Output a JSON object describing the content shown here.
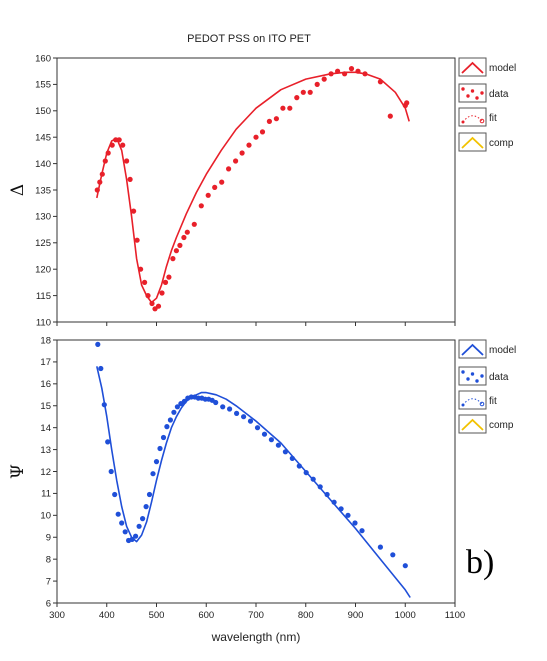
{
  "page_title": "PEDOT PSS on ITO PET",
  "panel_label": "b)",
  "xlabel": "wavelength (nm)",
  "legend_labels": [
    "model",
    "data",
    "fit",
    "comp"
  ],
  "colors": {
    "red": "#e8202a",
    "blue": "#1f4fd8",
    "yellow": "#f2c200",
    "frame": "#333333"
  },
  "chart_data": [
    {
      "type": "line",
      "ylabel": "Δ",
      "xlim": [
        300,
        1100
      ],
      "ylim": [
        110,
        160
      ],
      "xticks": [
        300,
        400,
        500,
        600,
        700,
        800,
        900,
        1000,
        1100
      ],
      "yticks": [
        110,
        115,
        120,
        125,
        130,
        135,
        140,
        145,
        150,
        155,
        160
      ],
      "legend_placement": "right",
      "series": [
        {
          "name": "model",
          "style": "line",
          "color": "#e8202a",
          "x": [
            380,
            390,
            400,
            410,
            420,
            430,
            440,
            450,
            460,
            470,
            480,
            490,
            500,
            510,
            520,
            530,
            540,
            560,
            580,
            600,
            630,
            660,
            700,
            750,
            800,
            850,
            880,
            900,
            920,
            950,
            980,
            1000,
            1008
          ],
          "y": [
            133.5,
            138,
            142,
            144.3,
            144.8,
            142.5,
            137,
            130,
            122,
            117,
            115,
            113.7,
            114.5,
            117,
            120.5,
            123.5,
            126,
            130.5,
            134.5,
            138,
            142.5,
            146.5,
            150.5,
            154,
            156,
            157,
            157.3,
            157.3,
            157,
            156,
            153.5,
            150.5,
            148
          ]
        },
        {
          "name": "data",
          "style": "points",
          "color": "#e8202a",
          "x": [
            381,
            386,
            391,
            397,
            403,
            411,
            418,
            425,
            432,
            440,
            447,
            454,
            461,
            468,
            476,
            483,
            491,
            497,
            504,
            511,
            518,
            525,
            533,
            540,
            547,
            555,
            562,
            576,
            590,
            604,
            617,
            631,
            645,
            659,
            672,
            686,
            700,
            713,
            727,
            741,
            754,
            768,
            782,
            795,
            809,
            823,
            837,
            851,
            864,
            878,
            892,
            905,
            919,
            950,
            970,
            1000,
            1003
          ],
          "y": [
            135,
            136.5,
            138,
            140.5,
            142,
            143.5,
            144.5,
            144.5,
            143.5,
            140.5,
            137,
            131,
            125.5,
            120,
            117.5,
            115,
            113.5,
            112.5,
            113,
            115.5,
            117.5,
            118.5,
            122,
            123.5,
            124.5,
            126,
            127,
            128.5,
            132,
            134,
            135.5,
            136.5,
            139,
            140.5,
            142,
            143.5,
            145,
            146,
            148,
            148.5,
            150.5,
            150.5,
            152.5,
            153.5,
            153.5,
            155,
            156,
            157,
            157.5,
            157,
            158,
            157.5,
            157,
            155.5,
            149,
            151,
            151.5
          ]
        },
        {
          "name": "fit",
          "style": "legend-only",
          "color": "#e8202a"
        },
        {
          "name": "comp",
          "style": "legend-only",
          "color": "#f2c200"
        }
      ]
    },
    {
      "type": "line",
      "ylabel": "Ψ",
      "xlim": [
        300,
        1100
      ],
      "ylim": [
        6,
        18
      ],
      "xticks": [
        300,
        400,
        500,
        600,
        700,
        800,
        900,
        1000,
        1100
      ],
      "yticks": [
        6,
        7,
        8,
        9,
        10,
        11,
        12,
        13,
        14,
        15,
        16,
        17,
        18
      ],
      "legend_placement": "right",
      "series": [
        {
          "name": "model",
          "style": "line",
          "color": "#1f4fd8",
          "x": [
            380,
            390,
            400,
            410,
            420,
            430,
            440,
            450,
            460,
            470,
            480,
            490,
            500,
            510,
            520,
            530,
            540,
            550,
            560,
            570,
            580,
            590,
            600,
            610,
            620,
            640,
            660,
            700,
            750,
            800,
            850,
            900,
            950,
            1000,
            1010
          ],
          "y": [
            16.8,
            15.8,
            14.5,
            13,
            11.6,
            10.4,
            9.5,
            9.0,
            8.8,
            9.1,
            9.7,
            10.6,
            11.6,
            12.5,
            13.3,
            14.0,
            14.5,
            14.9,
            15.2,
            15.4,
            15.5,
            15.6,
            15.6,
            15.55,
            15.5,
            15.3,
            15.0,
            14.3,
            13.3,
            12.0,
            10.7,
            9.4,
            8.0,
            6.6,
            6.25
          ]
        },
        {
          "name": "data",
          "style": "points",
          "color": "#1f4fd8",
          "x": [
            382,
            388,
            395,
            402,
            409,
            416,
            423,
            430,
            437,
            444,
            451,
            458,
            465,
            472,
            479,
            486,
            493,
            500,
            507,
            514,
            521,
            528,
            535,
            542,
            549,
            556,
            563,
            570,
            577,
            584,
            591,
            598,
            605,
            612,
            619,
            633,
            647,
            661,
            675,
            689,
            703,
            717,
            731,
            745,
            759,
            773,
            787,
            801,
            815,
            829,
            843,
            857,
            871,
            885,
            899,
            913,
            950,
            975,
            1000
          ],
          "y": [
            17.8,
            16.7,
            15.05,
            13.35,
            12.0,
            10.95,
            10.05,
            9.65,
            9.25,
            8.85,
            8.9,
            9.05,
            9.5,
            9.85,
            10.4,
            10.95,
            11.9,
            12.45,
            13.05,
            13.55,
            14.05,
            14.35,
            14.7,
            14.95,
            15.1,
            15.2,
            15.35,
            15.4,
            15.4,
            15.35,
            15.35,
            15.3,
            15.3,
            15.25,
            15.15,
            14.95,
            14.85,
            14.65,
            14.5,
            14.3,
            14.0,
            13.7,
            13.45,
            13.2,
            12.9,
            12.6,
            12.25,
            11.95,
            11.65,
            11.3,
            10.95,
            10.6,
            10.3,
            10.0,
            9.65,
            9.3,
            8.55,
            8.2,
            7.7
          ]
        },
        {
          "name": "fit",
          "style": "legend-only",
          "color": "#1f4fd8"
        },
        {
          "name": "comp",
          "style": "legend-only",
          "color": "#f2c200"
        }
      ]
    }
  ]
}
